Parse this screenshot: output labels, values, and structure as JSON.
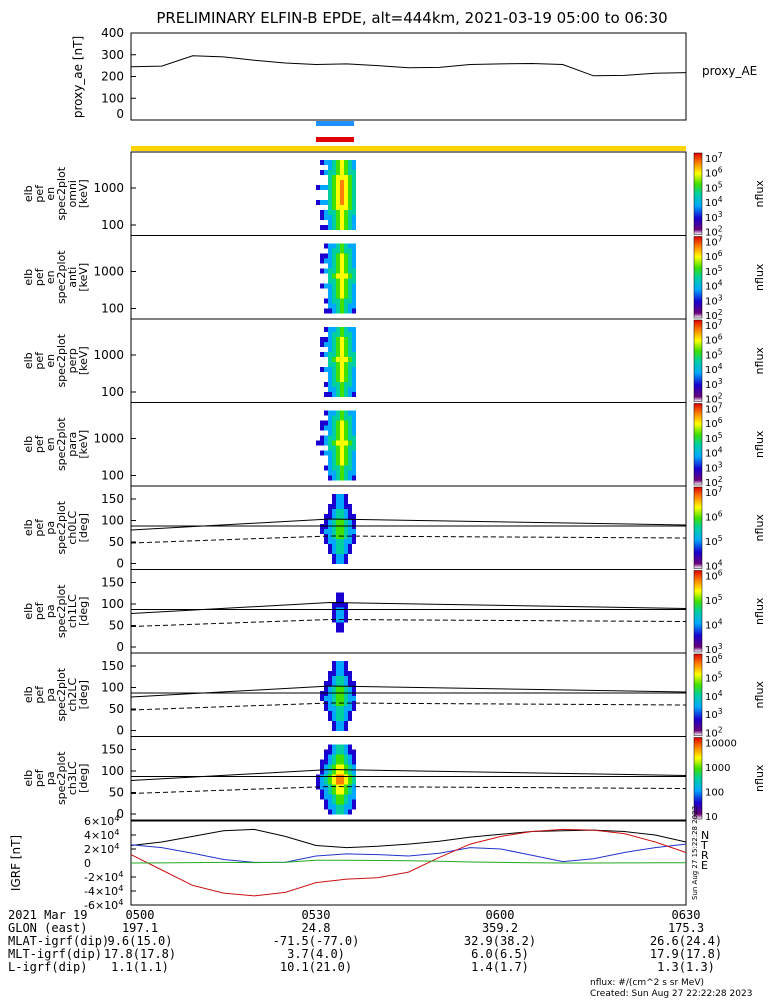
{
  "title": "PRELIMINARY ELFIN-B EPDE, alt=444km, 2021-03-19 05:00 to 06:30",
  "credits": {
    "units": "nflux: #/(cm^2 s sr MeV)",
    "created": "Created: Sun Aug 27 22:22:28 2023",
    "side_stamp": "Sun Aug 27 15:22:28 2023"
  },
  "footer": {
    "row_labels": [
      "2021 Mar 19",
      "GLON (east)",
      "MLAT-igrf(dip)",
      "MLT-igrf(dip)",
      "L-igrf(dip)"
    ],
    "columns": [
      {
        "time": "0500",
        "glon": "197.1",
        "mlat": "9.6(15.0)",
        "mlt": "17.8(17.8)",
        "l": "1.1(1.1)"
      },
      {
        "time": "0530",
        "glon": "24.8",
        "mlat": "-71.5(-77.0)",
        "mlt": "3.7(4.0)",
        "l": "10.1(21.0)"
      },
      {
        "time": "0600",
        "glon": "359.2",
        "mlat": "32.9(38.2)",
        "mlt": "6.0(6.5)",
        "l": "1.4(1.7)"
      },
      {
        "time": "0630",
        "glon": "175.3",
        "mlat": "26.6(24.4)",
        "mlt": "17.9(17.8)",
        "l": "1.3(1.3)"
      }
    ]
  },
  "colors": {
    "status_bar": "#ffd400",
    "bar_blue": "#1e90ff",
    "bar_red": "#e00000",
    "igrf_n": "#000000",
    "igrf_t": "#2233cc",
    "igrf_r": "#cc1111",
    "igrf_e": "#22aa22"
  },
  "chart_data": [
    {
      "type": "line",
      "name": "proxy_ae",
      "ylabel": "proxy_ae [nT]",
      "legend": "proxy_AE",
      "ylim": [
        0,
        400
      ],
      "yticks": [
        "400",
        "300",
        "200",
        "100",
        "0"
      ],
      "x_minutes": [
        0,
        5,
        10,
        15,
        20,
        25,
        30,
        35,
        40,
        45,
        50,
        55,
        60,
        65,
        70,
        75,
        80,
        85,
        90
      ],
      "values": [
        245,
        248,
        295,
        290,
        275,
        262,
        255,
        258,
        250,
        240,
        242,
        255,
        258,
        260,
        255,
        203,
        205,
        215,
        218
      ]
    },
    {
      "type": "heatmap",
      "panels": [
        {
          "ylabel": [
            "elb",
            "pef",
            "en",
            "spec2plot",
            "omni",
            "[keV]"
          ],
          "yticks": [
            "1000",
            "100"
          ],
          "cbar_ticks": [
            "10^7",
            "10^6",
            "10^5",
            "10^4",
            "10^3",
            "10^2"
          ],
          "cbar_label": "nflux",
          "scale": "log"
        },
        {
          "ylabel": [
            "elb",
            "pef",
            "en",
            "spec2plot",
            "anti",
            "[keV]"
          ],
          "yticks": [
            "1000",
            "100"
          ],
          "cbar_ticks": [
            "10^7",
            "10^6",
            "10^5",
            "10^4",
            "10^3",
            "10^2"
          ],
          "cbar_label": "nflux",
          "scale": "log"
        },
        {
          "ylabel": [
            "elb",
            "pef",
            "en",
            "spec2plot",
            "perp",
            "[keV]"
          ],
          "yticks": [
            "1000",
            "100"
          ],
          "cbar_ticks": [
            "10^7",
            "10^6",
            "10^5",
            "10^4",
            "10^3",
            "10^2"
          ],
          "cbar_label": "nflux",
          "scale": "log"
        },
        {
          "ylabel": [
            "elb",
            "pef",
            "en",
            "spec2plot",
            "para",
            "[keV]"
          ],
          "yticks": [
            "1000",
            "100"
          ],
          "cbar_ticks": [
            "10^7",
            "10^6",
            "10^5",
            "10^4",
            "10^3",
            "10^2"
          ],
          "cbar_label": "nflux",
          "scale": "log"
        }
      ]
    },
    {
      "type": "heatmap",
      "panels": [
        {
          "ylabel": [
            "elb",
            "pef",
            "pa",
            "spec2plot",
            "ch0LC",
            "[deg]"
          ],
          "yticks": [
            "150",
            "100",
            "50",
            "0"
          ],
          "cbar_ticks": [
            "10^7",
            "10^6",
            "10^5",
            "10^4"
          ],
          "cbar_label": "nflux"
        },
        {
          "ylabel": [
            "elb",
            "pef",
            "pa",
            "spec2plot",
            "ch1LC",
            "[deg]"
          ],
          "yticks": [
            "150",
            "100",
            "50",
            "0"
          ],
          "cbar_ticks": [
            "10^6",
            "10^5",
            "10^4",
            "10^3"
          ],
          "cbar_label": "nflux"
        },
        {
          "ylabel": [
            "elb",
            "pef",
            "pa",
            "spec2plot",
            "ch2LC",
            "[deg]"
          ],
          "yticks": [
            "150",
            "100",
            "50",
            "0"
          ],
          "cbar_ticks": [
            "10^6",
            "10^5",
            "10^4",
            "10^3",
            "10^2"
          ],
          "cbar_label": "nflux"
        },
        {
          "ylabel": [
            "elb",
            "pef",
            "pa",
            "spec2plot",
            "ch3LC",
            "[deg]"
          ],
          "yticks": [
            "150",
            "100",
            "50",
            "0"
          ],
          "cbar_ticks": [
            "10000",
            "1000",
            "100",
            "10"
          ],
          "cbar_label": "nflux"
        }
      ]
    },
    {
      "type": "line",
      "name": "IGRF",
      "ylabel": "IGRF [nT]",
      "ylim": [
        -60000,
        60000
      ],
      "yticks": [
        "6×10^4",
        "4×10^4",
        "2×10^4",
        "0",
        "-2×10^4",
        "-4×10^4",
        "-6×10^4"
      ],
      "x_minutes": [
        0,
        5,
        10,
        15,
        20,
        25,
        30,
        35,
        40,
        45,
        50,
        55,
        60,
        65,
        70,
        75,
        80,
        85,
        90
      ],
      "series": [
        {
          "name": "N",
          "values": [
            25000,
            30000,
            38000,
            46000,
            48000,
            38000,
            25000,
            22000,
            24000,
            27000,
            31000,
            37000,
            41000,
            45000,
            46000,
            47000,
            45000,
            40000,
            30000
          ]
        },
        {
          "name": "T",
          "values": [
            26000,
            22000,
            14000,
            5000,
            800,
            1000,
            10000,
            13000,
            12000,
            10000,
            14000,
            22000,
            20000,
            11000,
            2000,
            6000,
            15000,
            22000,
            27000
          ]
        },
        {
          "name": "R",
          "values": [
            12000,
            -10000,
            -32000,
            -43000,
            -47000,
            -42000,
            -28000,
            -23000,
            -21000,
            -13000,
            8000,
            27000,
            38000,
            45000,
            48000,
            47000,
            42000,
            30000,
            15000
          ]
        },
        {
          "name": "E",
          "values": [
            0,
            100,
            600,
            800,
            500,
            1000,
            4000,
            4000,
            3500,
            3200,
            2500,
            1500,
            800,
            400,
            0,
            0,
            200,
            300,
            400
          ]
        }
      ]
    }
  ]
}
